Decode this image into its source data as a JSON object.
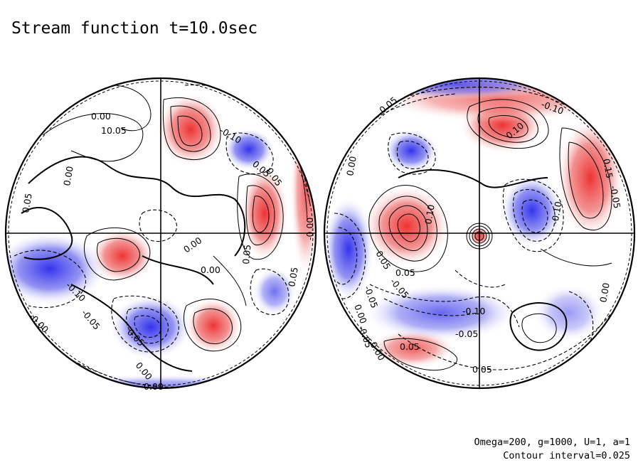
{
  "chart_data": {
    "type": "contour",
    "title": "Stream function t=10.0sec",
    "projection": "orthographic hemispheres",
    "parameters": "Omega=200, g=1000, U=1, a=1",
    "contour_interval_text": "Contour interval=0.025",
    "contour_interval": 0.025,
    "colors": {
      "positive": "#ee3333",
      "negative": "#3333ee",
      "zero": "#ffffff"
    },
    "hemispheres": [
      {
        "name": "left",
        "contour_labels": [
          "0.00",
          "10.05",
          "0.00",
          "0.05",
          "-0.10",
          "0.05",
          "0.00",
          "0.00",
          "0.05",
          "0.05",
          "-0.00",
          "-0.10",
          "-0.05",
          "0.05",
          "0.05",
          "-0.00",
          "0.00",
          "0.00"
        ],
        "extrema": [
          {
            "sign": "positive",
            "strength": 0.9
          },
          {
            "sign": "positive",
            "strength": 0.8
          },
          {
            "sign": "positive",
            "strength": 0.7
          },
          {
            "sign": "positive",
            "strength": 0.5
          },
          {
            "sign": "negative",
            "strength": 0.85
          },
          {
            "sign": "negative",
            "strength": 0.6
          },
          {
            "sign": "negative",
            "strength": 0.5
          }
        ]
      },
      {
        "name": "right",
        "contour_labels": [
          "0.05",
          "-0.10",
          "0.10",
          "0.15",
          "0.10",
          "0.05",
          "-0.10",
          "-0.05",
          "0.05",
          "0.00",
          "-0.05",
          "-0.05",
          "0.00",
          "0.05",
          "-0.10",
          "-0.05",
          "0.00",
          "0.05",
          "0.00",
          "-0.05"
        ],
        "extrema": [
          {
            "sign": "positive",
            "strength": 0.9
          },
          {
            "sign": "positive",
            "strength": 0.8
          },
          {
            "sign": "positive",
            "strength": 0.7
          },
          {
            "sign": "negative",
            "strength": 0.75
          },
          {
            "sign": "negative",
            "strength": 0.7
          },
          {
            "sign": "negative",
            "strength": 0.55
          }
        ]
      }
    ]
  }
}
